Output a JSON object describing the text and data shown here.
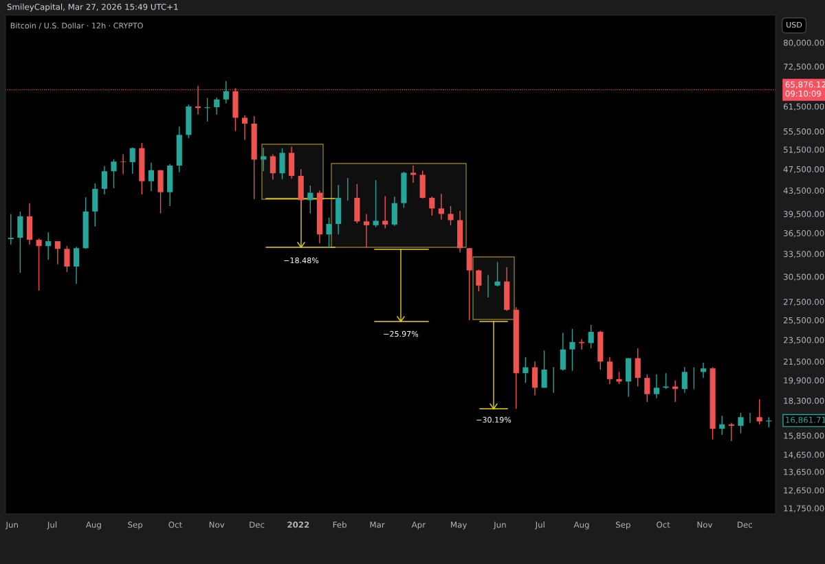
{
  "chart_data": {
    "type": "candlestick",
    "title": "Bitcoin / U.S. Dollar · 12h · CRYPTO",
    "ylabel": "USD",
    "x": [
      "2021-05-31",
      "2021-06-07",
      "2021-06-14",
      "2021-06-21",
      "2021-06-28",
      "2021-07-05",
      "2021-07-12",
      "2021-07-19",
      "2021-07-26",
      "2021-08-02",
      "2021-08-09",
      "2021-08-16",
      "2021-08-23",
      "2021-08-30",
      "2021-09-06",
      "2021-09-13",
      "2021-09-20",
      "2021-09-27",
      "2021-10-04",
      "2021-10-11",
      "2021-10-18",
      "2021-10-25",
      "2021-11-01",
      "2021-11-08",
      "2021-11-15",
      "2021-11-22",
      "2021-11-29",
      "2021-12-06",
      "2021-12-13",
      "2021-12-20",
      "2021-12-27",
      "2022-01-03",
      "2022-01-10",
      "2022-01-17",
      "2022-01-24",
      "2022-01-31",
      "2022-02-07",
      "2022-02-14",
      "2022-02-21",
      "2022-02-28",
      "2022-03-07",
      "2022-03-14",
      "2022-03-21",
      "2022-03-28",
      "2022-04-04",
      "2022-04-11",
      "2022-04-18",
      "2022-04-25",
      "2022-05-02",
      "2022-05-09",
      "2022-05-16",
      "2022-05-23",
      "2022-05-30",
      "2022-06-06",
      "2022-06-13",
      "2022-06-20",
      "2022-06-27",
      "2022-07-04",
      "2022-07-11",
      "2022-07-18",
      "2022-07-25",
      "2022-08-01",
      "2022-08-08",
      "2022-08-15",
      "2022-08-22",
      "2022-08-29",
      "2022-09-05",
      "2022-09-12",
      "2022-09-19",
      "2022-09-26",
      "2022-10-03",
      "2022-10-10",
      "2022-10-17",
      "2022-10-24",
      "2022-10-31",
      "2022-11-07",
      "2022-11-14",
      "2022-11-21",
      "2022-11-28",
      "2022-12-05",
      "2022-12-12",
      "2022-12-19"
    ],
    "ohlc": [
      [
        35600,
        39500,
        34800,
        35800
      ],
      [
        35800,
        39900,
        31000,
        39100
      ],
      [
        39100,
        41300,
        34800,
        35500
      ],
      [
        35500,
        35700,
        28800,
        34600
      ],
      [
        34600,
        36600,
        32700,
        35300
      ],
      [
        35300,
        35300,
        32100,
        34200
      ],
      [
        34200,
        34600,
        31100,
        31800
      ],
      [
        31800,
        34500,
        29600,
        34300
      ],
      [
        34300,
        42300,
        34200,
        39900
      ],
      [
        39900,
        44800,
        37500,
        43800
      ],
      [
        43800,
        48100,
        42800,
        47100
      ],
      [
        47100,
        49500,
        43900,
        49000
      ],
      [
        49000,
        50500,
        46500,
        48900
      ],
      [
        48900,
        51900,
        46600,
        51800
      ],
      [
        51800,
        52900,
        42800,
        45200
      ],
      [
        45200,
        48800,
        43400,
        47300
      ],
      [
        47300,
        47300,
        39600,
        43200
      ],
      [
        43200,
        48500,
        40800,
        48200
      ],
      [
        48200,
        56600,
        46900,
        54700
      ],
      [
        54700,
        62000,
        54000,
        61500
      ],
      [
        61500,
        67000,
        59500,
        61100
      ],
      [
        61100,
        63700,
        57800,
        61300
      ],
      [
        61300,
        63800,
        59500,
        63300
      ],
      [
        63300,
        68300,
        62300,
        65500
      ],
      [
        65500,
        66300,
        55600,
        58700
      ],
      [
        58700,
        59300,
        53600,
        57300
      ],
      [
        57300,
        59100,
        42000,
        49400
      ],
      [
        49400,
        51900,
        47100,
        50100
      ],
      [
        50100,
        50500,
        45500,
        46700
      ],
      [
        46700,
        51800,
        45600,
        50800
      ],
      [
        50800,
        52100,
        45700,
        46200
      ],
      [
        46200,
        47500,
        40600,
        41800
      ],
      [
        41800,
        44400,
        39600,
        43100
      ],
      [
        43100,
        43500,
        35000,
        36300
      ],
      [
        36300,
        38900,
        34400,
        37900
      ],
      [
        37900,
        44500,
        36300,
        42200
      ],
      [
        42200,
        45800,
        41700,
        42200
      ],
      [
        42200,
        44700,
        38000,
        38300
      ],
      [
        38300,
        39500,
        34400,
        37700
      ],
      [
        37700,
        45400,
        37400,
        38400
      ],
      [
        38400,
        42500,
        37200,
        37800
      ],
      [
        37800,
        42400,
        37600,
        41300
      ],
      [
        41300,
        47000,
        40500,
        46800
      ],
      [
        46800,
        48200,
        44900,
        46400
      ],
      [
        46400,
        47200,
        42100,
        42200
      ],
      [
        42200,
        42400,
        39200,
        40400
      ],
      [
        40400,
        42900,
        38600,
        39500
      ],
      [
        39500,
        40800,
        37700,
        38500
      ],
      [
        38500,
        40000,
        33700,
        34300
      ],
      [
        34300,
        34300,
        25500,
        31300
      ],
      [
        31300,
        31400,
        28700,
        29400
      ],
      [
        29400,
        30700,
        28000,
        29400
      ],
      [
        29400,
        32400,
        29300,
        29900
      ],
      [
        29900,
        31700,
        26500,
        26600
      ],
      [
        26600,
        26900,
        17700,
        20500
      ],
      [
        20500,
        21900,
        19700,
        21000
      ],
      [
        21000,
        21500,
        18700,
        19300
      ],
      [
        19300,
        22500,
        19300,
        20800
      ],
      [
        20800,
        21000,
        18900,
        20800
      ],
      [
        20800,
        24200,
        20700,
        22600
      ],
      [
        22600,
        24600,
        20700,
        23300
      ],
      [
        23300,
        23600,
        22600,
        23200
      ],
      [
        23200,
        25000,
        22700,
        24300
      ],
      [
        24300,
        24400,
        20800,
        21500
      ],
      [
        21500,
        21900,
        19600,
        20000
      ],
      [
        20000,
        20600,
        19600,
        19800
      ],
      [
        19800,
        21800,
        18600,
        21800
      ],
      [
        21800,
        22700,
        19400,
        20100
      ],
      [
        20100,
        20400,
        18200,
        18800
      ],
      [
        18800,
        20400,
        18500,
        19300
      ],
      [
        19300,
        20500,
        19200,
        19400
      ],
      [
        19400,
        19900,
        18200,
        19200
      ],
      [
        19200,
        21000,
        18900,
        20600
      ],
      [
        20600,
        21000,
        19200,
        20600
      ],
      [
        20600,
        21400,
        20100,
        20900
      ],
      [
        20900,
        21000,
        15600,
        16300
      ],
      [
        16300,
        17200,
        15900,
        16600
      ],
      [
        16600,
        16700,
        15500,
        16500
      ],
      [
        16500,
        17400,
        16000,
        17100
      ],
      [
        17100,
        17400,
        16700,
        17100
      ],
      [
        17100,
        18400,
        16600,
        16800
      ],
      [
        16800,
        17100,
        16400,
        16861.71
      ]
    ],
    "colors": [
      "#26a69a",
      "#26a69a",
      "#ef5350",
      "#ef5350",
      "#26a69a",
      "#ef5350",
      "#ef5350",
      "#26a69a",
      "#26a69a",
      "#26a69a",
      "#26a69a",
      "#26a69a",
      "#ef5350",
      "#26a69a",
      "#ef5350",
      "#26a69a",
      "#ef5350",
      "#26a69a",
      "#26a69a",
      "#26a69a",
      "#ef5350",
      "#26a69a",
      "#26a69a",
      "#26a69a",
      "#ef5350",
      "#ef5350",
      "#ef5350",
      "#26a69a",
      "#ef5350",
      "#26a69a",
      "#ef5350",
      "#ef5350",
      "#26a69a",
      "#ef5350",
      "#26a69a",
      "#26a69a",
      "#26a69a",
      "#ef5350",
      "#ef5350",
      "#26a69a",
      "#ef5350",
      "#26a69a",
      "#26a69a",
      "#ef5350",
      "#ef5350",
      "#ef5350",
      "#ef5350",
      "#ef5350",
      "#ef5350",
      "#ef5350",
      "#ef5350",
      "#26a69a",
      "#26a69a",
      "#ef5350",
      "#ef5350",
      "#26a69a",
      "#ef5350",
      "#26a69a",
      "#26a69a",
      "#26a69a",
      "#26a69a",
      "#ef5350",
      "#26a69a",
      "#ef5350",
      "#ef5350",
      "#ef5350",
      "#26a69a",
      "#ef5350",
      "#ef5350",
      "#26a69a",
      "#26a69a",
      "#ef5350",
      "#26a69a",
      "#26a69a",
      "#26a69a",
      "#ef5350",
      "#26a69a",
      "#ef5350",
      "#26a69a",
      "#26a69a",
      "#ef5350",
      "#26a69a"
    ],
    "log": true,
    "xlim": [
      "2021-05-27",
      "2022-12-24"
    ],
    "xticks": [
      {
        "value": "2021-06-01",
        "label": "Jun"
      },
      {
        "value": "2021-07-01",
        "label": "Jul"
      },
      {
        "value": "2021-08-01",
        "label": "Aug"
      },
      {
        "value": "2021-09-01",
        "label": "Sep"
      },
      {
        "value": "2021-10-01",
        "label": "Oct"
      },
      {
        "value": "2021-11-01",
        "label": "Nov"
      },
      {
        "value": "2021-12-01",
        "label": "Dec"
      },
      {
        "value": "2022-01-01",
        "label": "2022"
      },
      {
        "value": "2022-02-01",
        "label": "Feb"
      },
      {
        "value": "2022-03-01",
        "label": "Mar"
      },
      {
        "value": "2022-04-01",
        "label": "Apr"
      },
      {
        "value": "2022-05-01",
        "label": "May"
      },
      {
        "value": "2022-06-01",
        "label": "Jun"
      },
      {
        "value": "2022-07-01",
        "label": "Jul"
      },
      {
        "value": "2022-08-01",
        "label": "Aug"
      },
      {
        "value": "2022-09-01",
        "label": "Sep"
      },
      {
        "value": "2022-10-01",
        "label": "Oct"
      },
      {
        "value": "2022-11-01",
        "label": "Nov"
      },
      {
        "value": "2022-12-01",
        "label": "Dec"
      }
    ],
    "ylim": [
      11480,
      89600
    ],
    "yticks": [
      {
        "value": 11750,
        "label": "11,750.00"
      },
      {
        "value": 12650,
        "label": "12,650.00"
      },
      {
        "value": 13650,
        "label": "13,650.00"
      },
      {
        "value": 14650,
        "label": "14,650.00"
      },
      {
        "value": 15850,
        "label": "15,850.00"
      },
      {
        "value": 18300,
        "label": "18,300.00"
      },
      {
        "value": 19900,
        "label": "19,900.00"
      },
      {
        "value": 21500,
        "label": "21,500.00"
      },
      {
        "value": 23500,
        "label": "23,500.00"
      },
      {
        "value": 25500,
        "label": "25,500.00"
      },
      {
        "value": 27500,
        "label": "27,500.00"
      },
      {
        "value": 30500,
        "label": "30,500.00"
      },
      {
        "value": 33500,
        "label": "33,500.00"
      },
      {
        "value": 36500,
        "label": "36,500.00"
      },
      {
        "value": 39500,
        "label": "39,500.00"
      },
      {
        "value": 43500,
        "label": "43,500.00"
      },
      {
        "value": 47500,
        "label": "47,500.00"
      },
      {
        "value": 51500,
        "label": "51,500.00"
      },
      {
        "value": 55500,
        "label": "55,500.00"
      },
      {
        "value": 61500,
        "label": "61,500.00"
      },
      {
        "value": 72500,
        "label": "72,500.00"
      },
      {
        "value": 80000,
        "label": "80,000.00"
      }
    ],
    "ref_lines": [
      {
        "axis": "y",
        "value": 65876.12,
        "label": "65,876.12\n09:10:09",
        "color": "#f7525f",
        "line_style": "dotted"
      }
    ],
    "annotations": [
      "SmileyCapital, Mar 27, 2026 15:49 UTC+1",
      "−18.48%",
      "−25.97%",
      "−30.19%",
      {
        "text": "16,861.71",
        "x": "2022-12-19",
        "y": 16861.71
      }
    ]
  }
}
